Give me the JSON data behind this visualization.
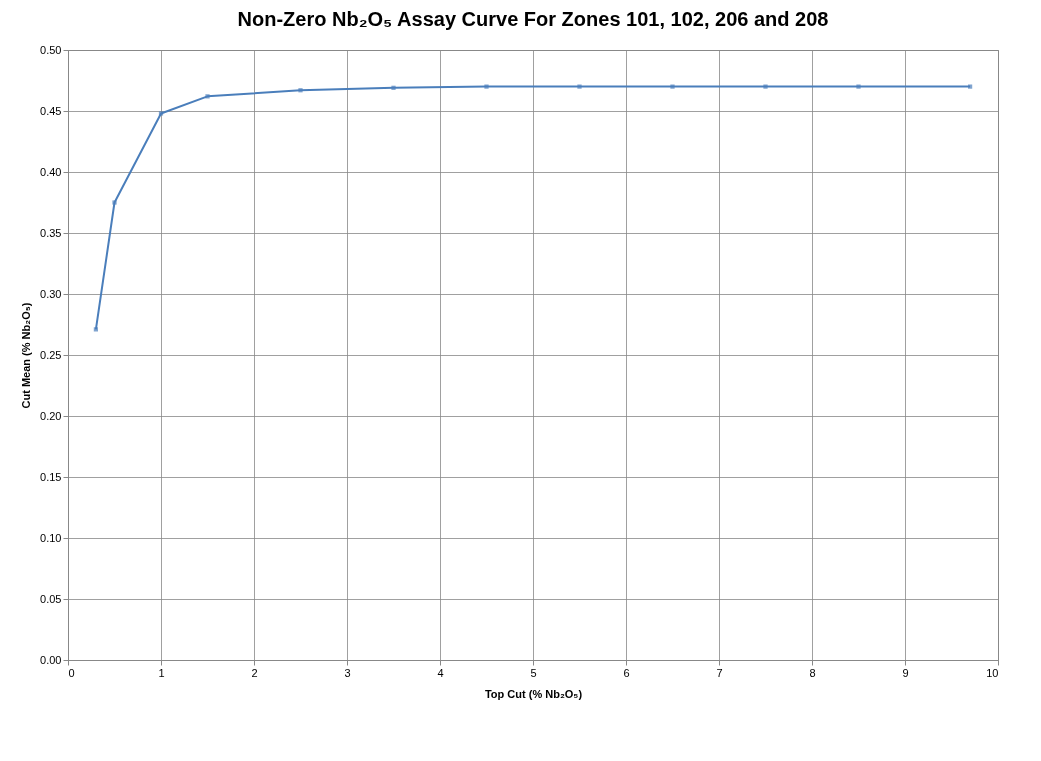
{
  "chart_data": {
    "type": "line",
    "title": "Non-Zero Nb₂O₅ Assay Curve For Zones 101, 102, 206 and 208",
    "xlabel": "Top Cut (% Nb₂O₅)",
    "ylabel": "Cut Mean (% Nb₂O₅)",
    "x": [
      0.3,
      0.5,
      1.0,
      1.5,
      2.5,
      3.5,
      4.5,
      5.5,
      6.5,
      7.5,
      8.5,
      9.7
    ],
    "series": [
      {
        "color": "#4a7ebb",
        "values": [
          0.271,
          0.375,
          0.448,
          0.462,
          0.467,
          0.469,
          0.47,
          0.47,
          0.47,
          0.47,
          0.47,
          0.47
        ]
      }
    ],
    "xlim": [
      0,
      10
    ],
    "xticks": [
      0,
      1,
      2,
      3,
      4,
      5,
      6,
      7,
      8,
      9,
      10
    ],
    "ylim": [
      0,
      0.5
    ],
    "yticks": [
      {
        "value": 0,
        "label": "0.00"
      },
      {
        "value": 0.05,
        "label": "0.05"
      },
      {
        "value": 0.1,
        "label": "0.10"
      },
      {
        "value": 0.15,
        "label": "0.15"
      },
      {
        "value": 0.2,
        "label": "0.20"
      },
      {
        "value": 0.25,
        "label": "0.25"
      },
      {
        "value": 0.3,
        "label": "0.30"
      },
      {
        "value": 0.35,
        "label": "0.35"
      },
      {
        "value": 0.4,
        "label": "0.40"
      },
      {
        "value": 0.45,
        "label": "0.45"
      },
      {
        "value": 0.5,
        "label": "0.50"
      }
    ],
    "grid": true,
    "marker": "square",
    "line_style": "solid"
  }
}
